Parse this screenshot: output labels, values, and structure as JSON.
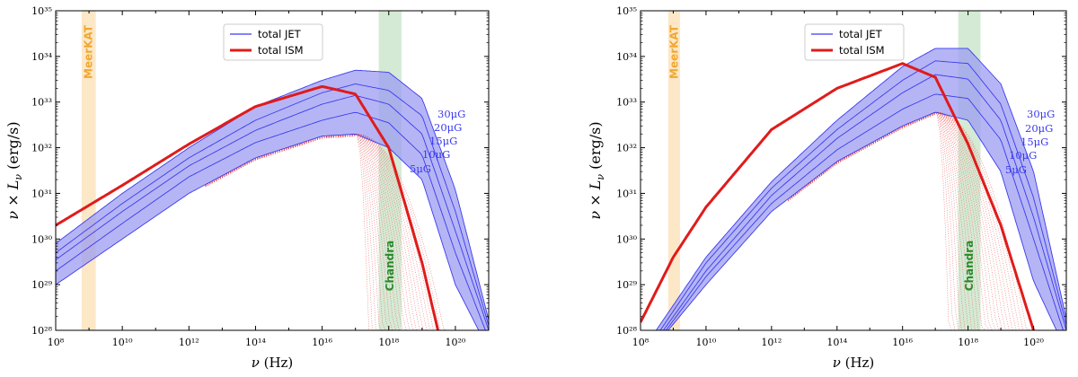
{
  "chart_data": [
    {
      "type": "line",
      "xlabel": "ν (Hz)",
      "ylabel": "ν × L_ν (erg/s)",
      "x_scale": "log",
      "y_scale": "log",
      "xlim": [
        100000000.0,
        1e+21
      ],
      "ylim": [
        1e+28,
        1e+35
      ],
      "x_ticks": [
        "10^8",
        "10^10",
        "10^12",
        "10^14",
        "10^16",
        "10^18",
        "10^20"
      ],
      "y_ticks": [
        "10^28",
        "10^29",
        "10^30",
        "10^31",
        "10^32",
        "10^33",
        "10^34",
        "10^35"
      ],
      "legend_position": "top-center",
      "bands": [
        {
          "label": "MeerKAT",
          "x_range": [
            600000000.0,
            1600000000.0
          ],
          "color": "#fbe3bd"
        },
        {
          "label": "Chandra",
          "x_range": [
            5e+17,
            2.4e+18
          ],
          "color": "#cde6cd"
        }
      ],
      "series": [
        {
          "name": "total JET",
          "color": "#3a3af0",
          "curves": [
            {
              "label": "5μG",
              "points": [
                [
                  100000000.0,
                  1e+29
                ],
                [
                  10000000000.0,
                  1e+30
                ],
                [
                  1000000000000.0,
                  1e+31
                ],
                [
                  100000000000000.0,
                  6e+31
                ],
                [
                  1e+16,
                  1.8e+32
                ],
                [
                  1e+17,
                  2e+32
                ],
                [
                  1e+18,
                  1e+32
                ],
                [
                  1e+19,
                  2e+31
                ],
                [
                  1e+20,
                  1e+29
                ],
                [
                  5e+20,
                  1e+28
                ]
              ]
            },
            {
              "label": "10μG",
              "points": [
                [
                  100000000.0,
                  2e+29
                ],
                [
                  10000000000.0,
                  2.2e+30
                ],
                [
                  1000000000000.0,
                  2.3e+31
                ],
                [
                  100000000000000.0,
                  1.3e+32
                ],
                [
                  1e+16,
                  4e+32
                ],
                [
                  1e+17,
                  6e+32
                ],
                [
                  1e+18,
                  3.5e+32
                ],
                [
                  1e+19,
                  7e+31
                ],
                [
                  1e+20,
                  5e+29
                ],
                [
                  8e+20,
                  1e+28
                ]
              ]
            },
            {
              "label": "15μG",
              "points": [
                [
                  100000000.0,
                  3.5e+29
                ],
                [
                  10000000000.0,
                  4e+30
                ],
                [
                  1000000000000.0,
                  4e+31
                ],
                [
                  100000000000000.0,
                  2.4e+32
                ],
                [
                  1e+16,
                  9e+32
                ],
                [
                  1e+17,
                  1.4e+33
                ],
                [
                  1e+18,
                  9e+32
                ],
                [
                  1e+19,
                  2e+32
                ],
                [
                  1e+20,
                  1.5e+30
                ],
                [
                  1e+21,
                  1e+28
                ]
              ]
            },
            {
              "label": "20μG",
              "points": [
                [
                  100000000.0,
                  5e+29
                ],
                [
                  10000000000.0,
                  6e+30
                ],
                [
                  1000000000000.0,
                  6e+31
                ],
                [
                  100000000000000.0,
                  4e+32
                ],
                [
                  1e+16,
                  1.6e+33
                ],
                [
                  1e+17,
                  2.5e+33
                ],
                [
                  1e+18,
                  1.8e+33
                ],
                [
                  1e+19,
                  5e+32
                ],
                [
                  1e+20,
                  4e+30
                ],
                [
                  1.1e+21,
                  1e+28
                ]
              ]
            },
            {
              "label": "30μG",
              "points": [
                [
                  100000000.0,
                  8e+29
                ],
                [
                  10000000000.0,
                  1e+31
                ],
                [
                  1000000000000.0,
                  1e+32
                ],
                [
                  100000000000000.0,
                  8e+32
                ],
                [
                  1e+16,
                  3e+33
                ],
                [
                  1e+17,
                  5e+33
                ],
                [
                  1e+18,
                  4.5e+33
                ],
                [
                  1e+19,
                  1.2e+33
                ],
                [
                  1e+20,
                  1.2e+31
                ],
                [
                  1.2e+21,
                  1e+28
                ]
              ]
            }
          ]
        },
        {
          "name": "total ISM",
          "color": "#e01b1b",
          "points": [
            [
              100000000.0,
              2e+30
            ],
            [
              10000000000.0,
              1.5e+31
            ],
            [
              1000000000000.0,
              1.2e+32
            ],
            [
              100000000000000.0,
              8e+32
            ],
            [
              1e+16,
              2.2e+33
            ],
            [
              1e+17,
              1.5e+33
            ],
            [
              1e+18,
              1e+32
            ],
            [
              1e+19,
              3e+29
            ],
            [
              3e+19,
              1e+28
            ]
          ]
        }
      ]
    },
    {
      "type": "line",
      "xlabel": "ν (Hz)",
      "ylabel": "ν × L_ν (erg/s)",
      "x_scale": "log",
      "y_scale": "log",
      "xlim": [
        100000000.0,
        1e+21
      ],
      "ylim": [
        1e+28,
        1e+35
      ],
      "x_ticks": [
        "10^8",
        "10^10",
        "10^12",
        "10^14",
        "10^16",
        "10^18",
        "10^20"
      ],
      "y_ticks": [
        "10^28",
        "10^29",
        "10^30",
        "10^31",
        "10^32",
        "10^33",
        "10^34",
        "10^35"
      ],
      "legend_position": "top-center",
      "bands": [
        {
          "label": "MeerKAT",
          "x_range": [
            700000000.0,
            1600000000.0
          ],
          "color": "#fbe3bd"
        },
        {
          "label": "Chandra",
          "x_range": [
            5e+17,
            2.4e+18
          ],
          "color": "#cde6cd"
        }
      ],
      "series": [
        {
          "name": "total JET",
          "color": "#3a3af0",
          "curves": [
            {
              "label": "5μG",
              "points": [
                [
                  700000000.0,
                  1e+28
                ],
                [
                  10000000000.0,
                  1e+29
                ],
                [
                  1000000000000.0,
                  4e+30
                ],
                [
                  100000000000000.0,
                  5e+31
                ],
                [
                  1e+16,
                  3e+32
                ],
                [
                  1e+17,
                  6e+32
                ],
                [
                  1e+18,
                  4e+32
                ],
                [
                  1e+19,
                  3e+31
                ],
                [
                  1e+20,
                  1.2e+29
                ],
                [
                  5e+20,
                  1e+28
                ]
              ]
            },
            {
              "label": "10μG",
              "points": [
                [
                  600000000.0,
                  1e+28
                ],
                [
                  10000000000.0,
                  1.5e+29
                ],
                [
                  1000000000000.0,
                  6e+30
                ],
                [
                  100000000000000.0,
                  9e+31
                ],
                [
                  1e+16,
                  7e+32
                ],
                [
                  1e+17,
                  1.5e+33
                ],
                [
                  1e+18,
                  1.2e+33
                ],
                [
                  1e+19,
                  1.5e+32
                ],
                [
                  1e+20,
                  1e+30
                ],
                [
                  8e+20,
                  1e+28
                ]
              ]
            },
            {
              "label": "15μG",
              "points": [
                [
                  500000000.0,
                  1e+28
                ],
                [
                  10000000000.0,
                  2e+29
                ],
                [
                  1000000000000.0,
                  9e+30
                ],
                [
                  100000000000000.0,
                  1.6e+32
                ],
                [
                  1e+16,
                  1.6e+33
                ],
                [
                  1e+17,
                  4e+33
                ],
                [
                  1e+18,
                  3.2e+33
                ],
                [
                  1e+19,
                  4e+32
                ],
                [
                  1e+20,
                  3e+30
                ],
                [
                  1e+21,
                  1e+28
                ]
              ]
            },
            {
              "label": "20μG",
              "points": [
                [
                  400000000.0,
                  1e+28
                ],
                [
                  10000000000.0,
                  3e+29
                ],
                [
                  1000000000000.0,
                  1.3e+31
                ],
                [
                  100000000000000.0,
                  2.5e+32
                ],
                [
                  1e+16,
                  3e+33
                ],
                [
                  1e+17,
                  8e+33
                ],
                [
                  1e+18,
                  7e+33
                ],
                [
                  1e+19,
                  9e+32
                ],
                [
                  1e+20,
                  8e+30
                ],
                [
                  1.1e+21,
                  1e+28
                ]
              ]
            },
            {
              "label": "30μG",
              "points": [
                [
                  300000000.0,
                  1e+28
                ],
                [
                  10000000000.0,
                  4e+29
                ],
                [
                  1000000000000.0,
                  1.8e+31
                ],
                [
                  100000000000000.0,
                  4e+32
                ],
                [
                  1e+16,
                  6e+33
                ],
                [
                  1e+17,
                  1.5e+34
                ],
                [
                  1e+18,
                  1.5e+34
                ],
                [
                  1e+19,
                  2.5e+33
                ],
                [
                  1e+20,
                  3e+31
                ],
                [
                  1.2e+21,
                  1e+28
                ]
              ]
            }
          ]
        },
        {
          "name": "total ISM",
          "color": "#e01b1b",
          "points": [
            [
              100000000.0,
              1.5e+28
            ],
            [
              1000000000.0,
              4e+29
            ],
            [
              10000000000.0,
              5e+30
            ],
            [
              1000000000000.0,
              2.5e+32
            ],
            [
              100000000000000.0,
              2e+33
            ],
            [
              1e+16,
              7e+33
            ],
            [
              1e+17,
              3.5e+33
            ],
            [
              1e+18,
              1.2e+32
            ],
            [
              1e+19,
              2e+30
            ],
            [
              1e+20,
              1e+28
            ]
          ]
        }
      ]
    }
  ]
}
